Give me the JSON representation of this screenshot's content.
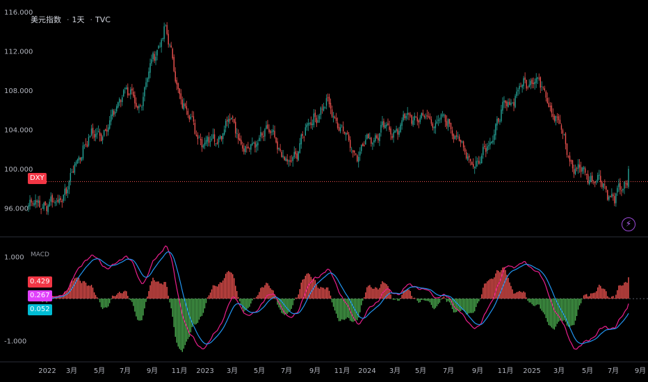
{
  "header": {
    "symbol_name": "美元指数",
    "interval": "1天",
    "exchange": "TVC",
    "sep": "·"
  },
  "macd_panel": {
    "label": "MACD",
    "hist_badge": "0.429",
    "macd_badge": "0.267",
    "signal_badge": "0.052"
  },
  "price_badge": "DXY",
  "colors": {
    "up": "#26a69a",
    "down": "#ef5350",
    "hist_pos": "#ef5350",
    "hist_neg": "#4caf50",
    "macd_line": "#e91e8c",
    "signal_line": "#2196f3",
    "price_line": "#ef5350",
    "hist_badge_bg": "#f23645",
    "macd_badge_bg": "#e040fb",
    "signal_badge_bg": "#00bcd4"
  },
  "chart_data": [
    {
      "type": "candlestick",
      "title": "美元指数 · 1天 · TVC",
      "ylim": [
        93.5,
        116.5
      ],
      "y_ticks": [
        "116.000",
        "112.000",
        "108.000",
        "104.000",
        "100.000",
        "96.000"
      ],
      "y_tick_values": [
        116,
        112,
        108,
        104,
        100,
        96
      ],
      "current_price": 98.7,
      "x_ticks": [
        "2022",
        "3月",
        "5月",
        "7月",
        "9月",
        "11月",
        "2023",
        "3月",
        "5月",
        "7月",
        "9月",
        "11月",
        "2024",
        "3月",
        "5月",
        "7月",
        "9月",
        "11月",
        "2025",
        "3月",
        "5月",
        "7月",
        "9月"
      ],
      "anchor_series": {
        "x": [
          "2021-12",
          "2022-01",
          "2022-02",
          "2022-03",
          "2022-04",
          "2022-05",
          "2022-06",
          "2022-07",
          "2022-08",
          "2022-09",
          "2022-10",
          "2022-11",
          "2022-12",
          "2023-01",
          "2023-02",
          "2023-03",
          "2023-04",
          "2023-05",
          "2023-06",
          "2023-07",
          "2023-08",
          "2023-09",
          "2023-10",
          "2023-11",
          "2023-12",
          "2024-01",
          "2024-02",
          "2024-03",
          "2024-04",
          "2024-05",
          "2024-06",
          "2024-07",
          "2024-08",
          "2024-09",
          "2024-10",
          "2024-11",
          "2024-12",
          "2025-01",
          "2025-02",
          "2025-03",
          "2025-04",
          "2025-05",
          "2025-06",
          "2025-07",
          "2025-08"
        ],
        "values": [
          96.3,
          96.5,
          96.4,
          98.5,
          102.5,
          103.5,
          104.5,
          108.5,
          106.0,
          110.5,
          114.5,
          108.0,
          104.5,
          102.5,
          103.5,
          105.0,
          101.5,
          103.5,
          103.5,
          100.0,
          103.0,
          105.5,
          106.5,
          104.0,
          101.5,
          103.0,
          104.0,
          104.0,
          105.5,
          105.0,
          105.0,
          104.5,
          101.5,
          100.5,
          103.5,
          106.5,
          108.0,
          109.5,
          107.5,
          104.0,
          100.0,
          99.5,
          98.5,
          97.0,
          98.7
        ]
      }
    },
    {
      "type": "macd",
      "title": "MACD",
      "ylim": [
        -1.4,
        1.35
      ],
      "y_ticks": [
        "1.000",
        "-1.000"
      ],
      "y_tick_values": [
        1,
        -1
      ],
      "last_values": {
        "histogram": 0.429,
        "macd": 0.267,
        "signal": 0.052
      }
    }
  ]
}
